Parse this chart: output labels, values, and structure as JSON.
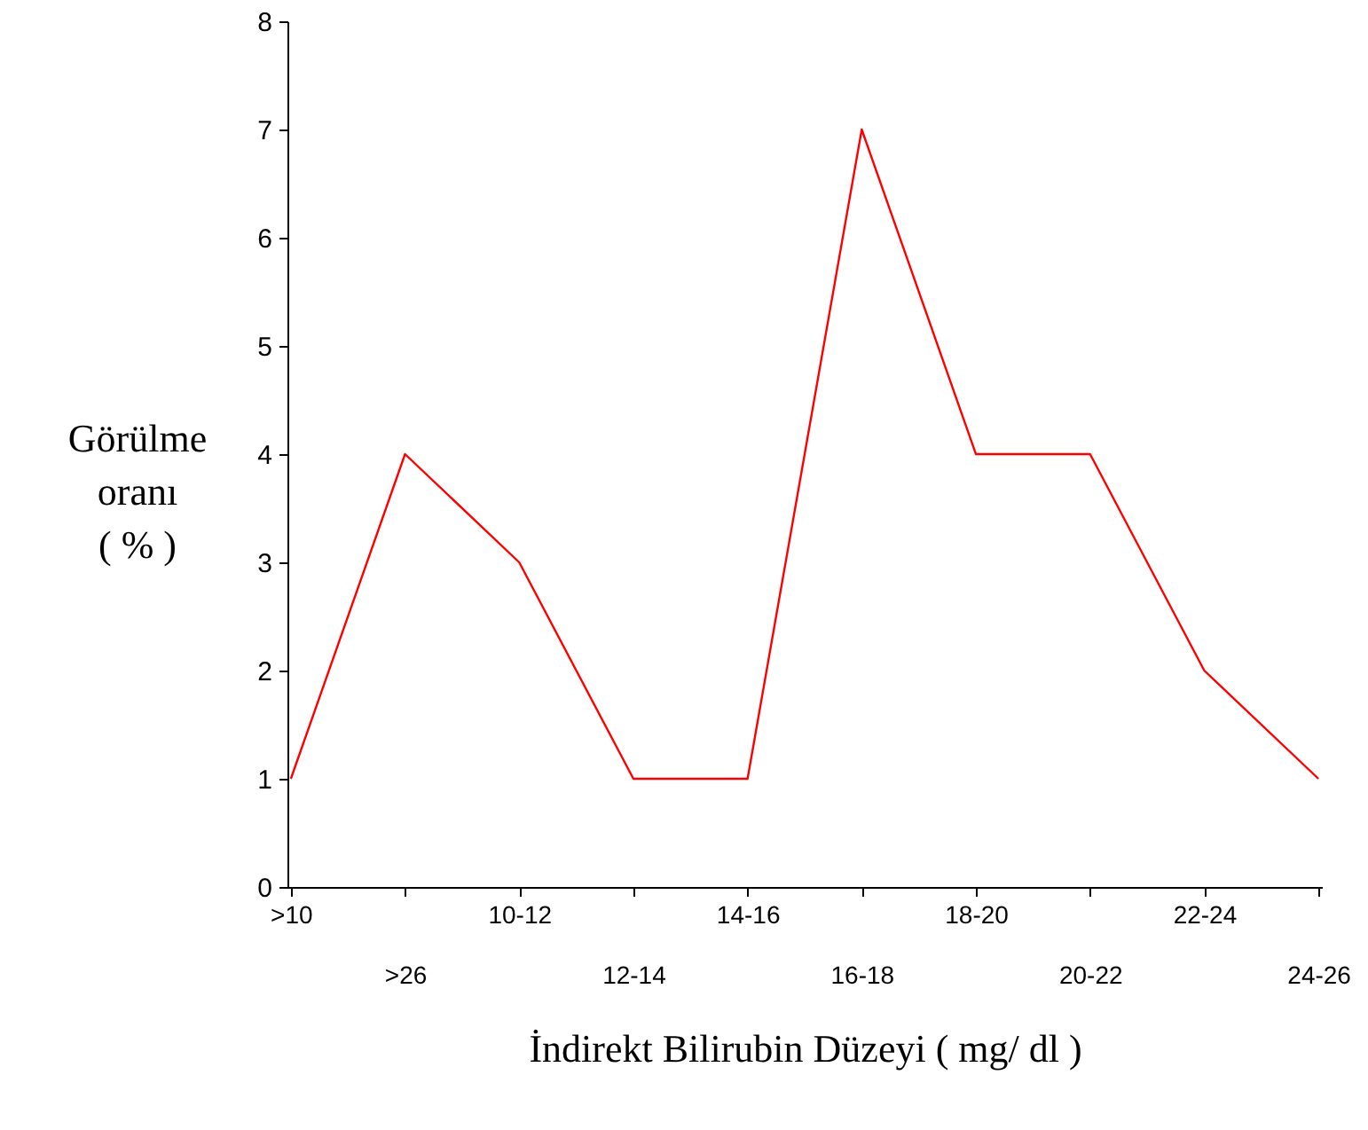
{
  "chart_data": {
    "type": "line",
    "xlabel": "İndirekt Bilirubin Düzeyi ( mg/ dl )",
    "ylabel": "Görülme oranı ( % )",
    "categories": [
      ">10",
      ">26",
      "10-12",
      "12-14",
      "14-16",
      "16-18",
      "18-20",
      "20-22",
      "22-24",
      "24-26"
    ],
    "series": [
      {
        "color": "#ff0000",
        "values": [
          1,
          4,
          3,
          1,
          1,
          7,
          4,
          4,
          2,
          1
        ]
      }
    ],
    "ylim": [
      0,
      8
    ],
    "yticks": [
      0,
      1,
      2,
      3,
      4,
      5,
      6,
      7,
      8
    ],
    "grid": false,
    "marker": "none",
    "line_style": "solid"
  }
}
